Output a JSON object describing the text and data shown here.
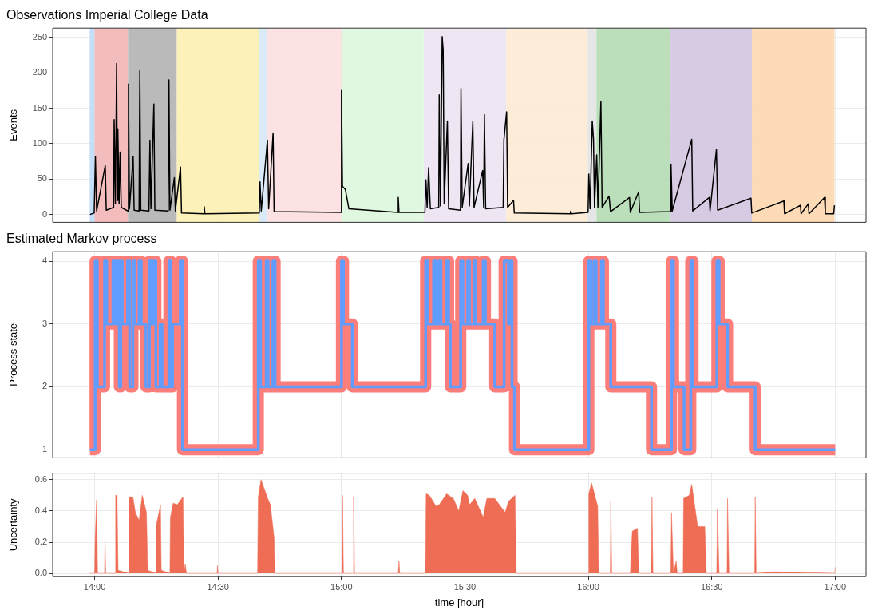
{
  "chart_data": [
    {
      "type": "line",
      "title": "Observations Imperial College Data",
      "ylabel": "Events",
      "xlim": [
        13.83,
        17.125
      ],
      "ylim": [
        -11,
        263
      ],
      "xticks": [
        {
          "value": 14,
          "label": null
        },
        {
          "value": 14.5,
          "label": null
        },
        {
          "value": 15,
          "label": null
        },
        {
          "value": 15.5,
          "label": null
        },
        {
          "value": 16,
          "label": null
        },
        {
          "value": 16.5,
          "label": null
        },
        {
          "value": 17,
          "label": null
        }
      ],
      "yticks": [
        0,
        50,
        100,
        150,
        200,
        250
      ],
      "grid": true,
      "tick_labels": "y",
      "marker": "none",
      "bands": [
        {
          "axis": "x",
          "from": 13.98,
          "to": 14.0,
          "color": "#bcdaf5"
        },
        {
          "axis": "x",
          "from": 14.0,
          "to": 14.135,
          "color": "#f2b6b6"
        },
        {
          "axis": "x",
          "from": 14.135,
          "to": 14.333,
          "color": "#b2b2b2"
        },
        {
          "axis": "x",
          "from": 14.333,
          "to": 14.667,
          "color": "#fdf0b3"
        },
        {
          "axis": "x",
          "from": 14.667,
          "to": 14.7,
          "color": "#d6e8f5"
        },
        {
          "axis": "x",
          "from": 14.7,
          "to": 15.0,
          "color": "#fcdfe0"
        },
        {
          "axis": "x",
          "from": 15.0,
          "to": 15.333,
          "color": "#dcf7dc"
        },
        {
          "axis": "x",
          "from": 15.333,
          "to": 15.667,
          "color": "#ece4f2"
        },
        {
          "axis": "x",
          "from": 15.667,
          "to": 15.997,
          "color": "#fdebd4"
        },
        {
          "axis": "x",
          "from": 15.997,
          "to": 16.033,
          "color": "#e4e4e4"
        },
        {
          "axis": "x",
          "from": 16.033,
          "to": 16.333,
          "color": "#b3dcb3"
        },
        {
          "axis": "x",
          "from": 16.333,
          "to": 16.663,
          "color": "#d3c4e0"
        },
        {
          "axis": "x",
          "from": 16.663,
          "to": 16.997,
          "color": "#fdd7ae"
        }
      ],
      "series": [
        {
          "color": "#000000",
          "x": [
            13.981,
            13.998,
            14.003,
            14.008,
            14.043,
            14.047,
            14.077,
            14.079,
            14.084,
            14.089,
            14.092,
            14.094,
            14.099,
            14.103,
            14.108,
            14.134,
            14.137,
            14.141,
            14.156,
            14.16,
            14.18,
            14.183,
            14.187,
            14.22,
            14.224,
            14.228,
            14.24,
            14.244,
            14.298,
            14.301,
            14.305,
            14.323,
            14.327,
            14.348,
            14.352,
            14.442,
            14.444,
            14.447,
            14.667,
            14.67,
            14.675,
            14.7,
            14.705,
            14.723,
            14.727,
            14.998,
            15.0,
            15.004,
            15.016,
            15.03,
            15.228,
            15.23,
            15.233,
            15.338,
            15.342,
            15.347,
            15.353,
            15.36,
            15.394,
            15.396,
            15.401,
            15.408,
            15.412,
            15.416,
            15.429,
            15.434,
            15.482,
            15.484,
            15.489,
            15.513,
            15.518,
            15.532,
            15.537,
            15.572,
            15.576,
            15.579,
            15.584,
            15.655,
            15.658,
            15.669,
            15.673,
            15.697,
            15.7,
            15.927,
            15.929,
            15.932,
            15.999,
            16.002,
            16.007,
            16.016,
            16.021,
            16.025,
            16.034,
            16.039,
            16.051,
            16.056,
            16.084,
            16.09,
            16.167,
            16.17,
            16.204,
            16.208,
            16.333,
            16.335,
            16.34,
            16.419,
            16.423,
            16.49,
            16.493,
            16.519,
            16.524,
            16.659,
            16.662,
            16.792,
            16.795,
            16.859,
            16.862,
            16.891,
            16.894,
            16.957,
            16.96,
            16.994,
            16.997
          ],
          "values": [
            0,
            2,
            82,
            5,
            69,
            6,
            10,
            134,
            15,
            213,
            20,
            121,
            15,
            88,
            10,
            5,
            184,
            8,
            82,
            6,
            5,
            203,
            6,
            5,
            105,
            8,
            156,
            6,
            5,
            190,
            6,
            52,
            5,
            67,
            2,
            1,
            11,
            1,
            2,
            46,
            5,
            105,
            8,
            115,
            4,
            3,
            175,
            40,
            35,
            8,
            3,
            24,
            3,
            3,
            49,
            10,
            66,
            8,
            10,
            169,
            12,
            251,
            232,
            15,
            132,
            8,
            6,
            178,
            10,
            72,
            12,
            131,
            10,
            62,
            10,
            141,
            8,
            10,
            105,
            145,
            10,
            20,
            2,
            1,
            5,
            1,
            3,
            57,
            8,
            132,
            106,
            10,
            84,
            10,
            159,
            10,
            26,
            4,
            24,
            3,
            32,
            3,
            4,
            71,
            5,
            106,
            5,
            24,
            5,
            92,
            6,
            23,
            2,
            19,
            1,
            13,
            1,
            15,
            1,
            24,
            1,
            1,
            13
          ]
        }
      ]
    },
    {
      "type": "step",
      "title": "Estimated Markov process",
      "ylabel": "Process state",
      "xlim": [
        13.83,
        17.125
      ],
      "ylim": [
        0.87,
        4.15
      ],
      "xticks": [
        {
          "value": 14,
          "label": null
        },
        {
          "value": 14.5,
          "label": null
        },
        {
          "value": 15,
          "label": null
        },
        {
          "value": 15.5,
          "label": null
        },
        {
          "value": 16,
          "label": null
        },
        {
          "value": 16.5,
          "label": null
        },
        {
          "value": 17,
          "label": null
        }
      ],
      "yticks": [
        1,
        2,
        3,
        4
      ],
      "grid": true,
      "tick_labels": "y",
      "marker": "none",
      "series": [
        {
          "color": "#fb7e7b",
          "x": [
            13.981,
            14.002,
            14.011,
            14.04,
            14.049,
            14.074,
            14.083,
            14.091,
            14.1,
            14.106,
            14.112,
            14.133,
            14.142,
            14.155,
            14.163,
            14.18,
            14.189,
            14.208,
            14.222,
            14.231,
            14.239,
            14.248,
            14.265,
            14.273,
            14.301,
            14.309,
            14.316,
            14.347,
            14.356,
            14.663,
            14.672,
            14.695,
            14.703,
            14.722,
            14.731,
            15.0,
            15.008,
            15.044,
            15.341,
            15.35,
            15.373,
            15.381,
            15.394,
            15.403,
            15.426,
            15.434,
            15.441,
            15.483,
            15.492,
            15.511,
            15.519,
            15.536,
            15.544,
            15.574,
            15.583,
            15.621,
            15.659,
            15.676,
            15.684,
            15.691,
            15.701,
            16.002,
            16.011,
            16.023,
            16.032,
            16.053,
            16.061,
            16.091,
            16.256,
            16.337,
            16.345,
            16.388,
            16.415,
            16.424,
            16.521,
            16.53,
            16.564,
            16.676,
            17.0
          ],
          "values": [
            1,
            4,
            2,
            4,
            3,
            4,
            3,
            4,
            2,
            4,
            3,
            4,
            2,
            4,
            3,
            4,
            3,
            2,
            4,
            3,
            4,
            2,
            3,
            2,
            4,
            2,
            3,
            4,
            1,
            4,
            2,
            4,
            2,
            4,
            2,
            4,
            3,
            2,
            4,
            3,
            4,
            3,
            4,
            3,
            4,
            3,
            2,
            4,
            3,
            4,
            3,
            4,
            3,
            4,
            3,
            2,
            4,
            3,
            4,
            2,
            1,
            4,
            3,
            4,
            3,
            4,
            3,
            2,
            1,
            4,
            2,
            1,
            4,
            2,
            4,
            3,
            2,
            1,
            1
          ]
        },
        {
          "color": "#619cff",
          "x": [
            13.981,
            14.002,
            14.011,
            14.04,
            14.049,
            14.074,
            14.083,
            14.091,
            14.1,
            14.106,
            14.112,
            14.133,
            14.142,
            14.155,
            14.163,
            14.18,
            14.189,
            14.208,
            14.222,
            14.231,
            14.239,
            14.248,
            14.265,
            14.273,
            14.301,
            14.309,
            14.316,
            14.347,
            14.356,
            14.663,
            14.672,
            14.695,
            14.703,
            14.722,
            14.731,
            15.0,
            15.008,
            15.044,
            15.341,
            15.35,
            15.373,
            15.381,
            15.394,
            15.403,
            15.426,
            15.434,
            15.441,
            15.483,
            15.492,
            15.511,
            15.519,
            15.536,
            15.544,
            15.574,
            15.583,
            15.621,
            15.659,
            15.676,
            15.684,
            15.691,
            15.701,
            16.002,
            16.011,
            16.023,
            16.032,
            16.053,
            16.061,
            16.091,
            16.256,
            16.337,
            16.345,
            16.388,
            16.415,
            16.424,
            16.521,
            16.53,
            16.564,
            16.676,
            17.0
          ],
          "values": [
            1,
            4,
            2,
            4,
            3,
            4,
            3,
            4,
            2,
            4,
            3,
            4,
            2,
            4,
            3,
            4,
            3,
            2,
            4,
            3,
            4,
            2,
            3,
            2,
            4,
            2,
            3,
            4,
            1,
            4,
            2,
            4,
            2,
            4,
            2,
            4,
            3,
            2,
            4,
            3,
            4,
            3,
            4,
            3,
            4,
            3,
            2,
            4,
            3,
            4,
            3,
            4,
            3,
            4,
            3,
            2,
            4,
            3,
            4,
            2,
            1,
            4,
            3,
            4,
            3,
            4,
            3,
            2,
            1,
            4,
            2,
            1,
            4,
            2,
            4,
            3,
            2,
            1,
            1
          ]
        }
      ]
    },
    {
      "type": "area",
      "xlabel": "time [hour]",
      "ylabel": "Uncertainty",
      "xlim": [
        13.83,
        17.125
      ],
      "ylim": [
        -0.021,
        0.642
      ],
      "xticks": [
        {
          "value": 14,
          "label": "14:00"
        },
        {
          "value": 14.5,
          "label": "14:30"
        },
        {
          "value": 15,
          "label": "15:00"
        },
        {
          "value": 15.5,
          "label": "15:30"
        },
        {
          "value": 16,
          "label": "16:00"
        },
        {
          "value": 16.5,
          "label": "16:30"
        },
        {
          "value": 17,
          "label": "17:00"
        }
      ],
      "yticks": [
        {
          "value": 0,
          "label": "0.0"
        },
        {
          "value": 0.2,
          "label": "0.2"
        },
        {
          "value": 0.4,
          "label": "0.4"
        },
        {
          "value": 0.6,
          "label": "0.6"
        }
      ],
      "grid": true,
      "marker": "none",
      "series": [
        {
          "color": "#ef6c55",
          "x": [
            13.98,
            14.0,
            14.002,
            14.008,
            14.012,
            14.04,
            14.042,
            14.045,
            14.083,
            14.085,
            14.091,
            14.095,
            14.138,
            14.14,
            14.155,
            14.165,
            14.18,
            14.193,
            14.21,
            14.215,
            14.248,
            14.25,
            14.267,
            14.27,
            14.305,
            14.307,
            14.318,
            14.335,
            14.358,
            14.362,
            14.367,
            14.372,
            14.496,
            14.498,
            14.5,
            14.66,
            14.663,
            14.674,
            14.701,
            14.712,
            14.727,
            14.73,
            15.002,
            15.004,
            15.008,
            15.047,
            15.049,
            15.053,
            15.23,
            15.233,
            15.236,
            15.34,
            15.343,
            15.356,
            15.383,
            15.396,
            15.426,
            15.453,
            15.475,
            15.492,
            15.511,
            15.519,
            15.54,
            15.574,
            15.589,
            15.621,
            15.663,
            15.676,
            15.703,
            15.708,
            16.0,
            16.002,
            16.013,
            16.023,
            16.038,
            16.042,
            16.089,
            16.091,
            16.095,
            16.17,
            16.178,
            16.199,
            16.205,
            16.255,
            16.258,
            16.262,
            16.334,
            16.337,
            16.345,
            16.356,
            16.36,
            16.384,
            16.386,
            16.409,
            16.419,
            16.443,
            16.472,
            16.478,
            16.52,
            16.523,
            16.53,
            16.562,
            16.564,
            16.57,
            16.674,
            16.676,
            16.68,
            16.75,
            16.998,
            17.0
          ],
          "values": [
            0,
            0,
            0.23,
            0.47,
            0,
            0,
            0.23,
            0,
            0,
            0.5,
            0.5,
            0.02,
            0,
            0.49,
            0.49,
            0.39,
            0.34,
            0.5,
            0.39,
            0.02,
            0,
            0.31,
            0.44,
            0.02,
            0,
            0.36,
            0.45,
            0.44,
            0.49,
            0,
            0.06,
            0,
            0,
            0.05,
            0,
            0,
            0.49,
            0.6,
            0.48,
            0.44,
            0.23,
            0,
            0,
            0.5,
            0,
            0,
            0.49,
            0,
            0,
            0.08,
            0,
            0,
            0.51,
            0.5,
            0.43,
            0.44,
            0.51,
            0.48,
            0.4,
            0.53,
            0.5,
            0.44,
            0.48,
            0.36,
            0.48,
            0.48,
            0.39,
            0.46,
            0.5,
            0,
            0,
            0.51,
            0.58,
            0.52,
            0.43,
            0,
            0,
            0.46,
            0,
            0,
            0.27,
            0.29,
            0,
            0,
            0.49,
            0,
            0,
            0.39,
            0,
            0.08,
            0,
            0,
            0.48,
            0.5,
            0.57,
            0.3,
            0.3,
            0,
            0,
            0.41,
            0,
            0,
            0.48,
            0,
            0,
            0.49,
            0,
            0.01,
            0,
            0.04
          ]
        }
      ]
    }
  ]
}
